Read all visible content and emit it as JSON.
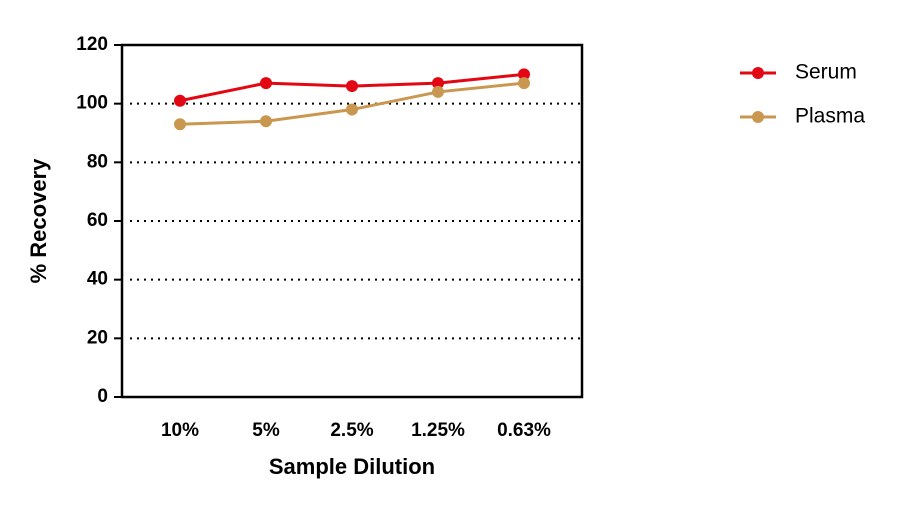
{
  "chart_data": {
    "type": "line",
    "x_label": "Sample Dilution",
    "y_label": "% Recovery",
    "categories": [
      "10%",
      "5%",
      "2.5%",
      "1.25%",
      "0.63%"
    ],
    "series": [
      {
        "name": "Serum",
        "color": "#e30613",
        "values": [
          101,
          107,
          106,
          107,
          110
        ]
      },
      {
        "name": "Plasma",
        "color": "#c9974f",
        "values": [
          93,
          94,
          98,
          104,
          107
        ]
      }
    ],
    "ylim": [
      0,
      120
    ],
    "yticks": [
      0,
      20,
      40,
      60,
      80,
      100,
      120
    ],
    "grid": true,
    "legend": "right"
  }
}
